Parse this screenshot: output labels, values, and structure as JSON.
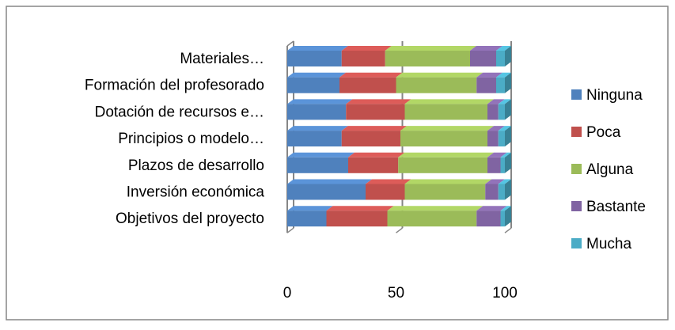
{
  "chart_data": {
    "type": "bar",
    "orientation": "horizontal",
    "stacked": true,
    "three_d": true,
    "categories": [
      "Objetivos del proyecto",
      "Inversión económica",
      "Plazos de desarrollo",
      "Principios o modelo…",
      "Dotación de recursos e…",
      "Formación del profesorado",
      "Materiales…"
    ],
    "series": [
      {
        "name": "Ninguna",
        "color": "#4F81BD",
        "values": [
          18,
          36,
          28,
          25,
          27,
          24,
          25
        ]
      },
      {
        "name": "Poca",
        "color": "#C0504D",
        "values": [
          28,
          18,
          23,
          27,
          27,
          26,
          20
        ]
      },
      {
        "name": "Alguna",
        "color": "#9BBB59",
        "values": [
          41,
          37,
          41,
          40,
          38,
          37,
          39
        ]
      },
      {
        "name": "Bastante",
        "color": "#8064A2",
        "values": [
          11,
          6,
          6,
          5,
          5,
          9,
          12
        ]
      },
      {
        "name": "Mucha",
        "color": "#4BACC6",
        "values": [
          2,
          3,
          2,
          3,
          3,
          4,
          4
        ]
      }
    ],
    "xticks": [
      "0",
      "50",
      "100"
    ],
    "xlim": [
      0,
      100
    ],
    "grid": true,
    "legend": "right"
  }
}
